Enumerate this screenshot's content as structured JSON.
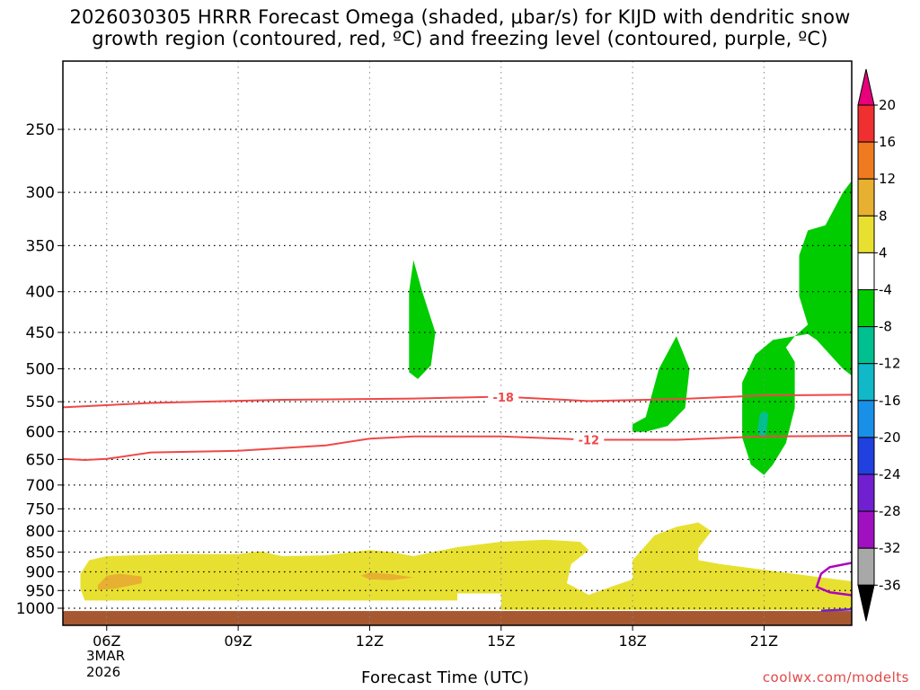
{
  "title_line1": "2026030305 HRRR Forecast Omega (shaded, μbar/s) for KIJD with dendritic snow",
  "title_line2": "growth region (contoured, red, ºC) and freezing level (contoured, purple, ºC)",
  "credit": "coolwx.com/modelts",
  "chart_data": {
    "type": "time-height contour",
    "xlabel": "Forecast Time (UTC)",
    "x_ticks": [
      "06Z",
      "09Z",
      "12Z",
      "15Z",
      "18Z",
      "21Z"
    ],
    "x_tick_hours": [
      6,
      9,
      12,
      15,
      18,
      21
    ],
    "xlim_hours": [
      5,
      23
    ],
    "date_label": [
      "3MAR",
      "2026"
    ],
    "y_axis": "pressure (hPa), log scale, inverted",
    "y_ticks": [
      250,
      300,
      350,
      400,
      450,
      500,
      550,
      600,
      650,
      700,
      750,
      800,
      850,
      900,
      950,
      1000
    ],
    "ylim": [
      200,
      1030
    ],
    "grid": true,
    "colorbar": {
      "labels": [
        "20",
        "16",
        "12",
        "8",
        "4",
        "-4",
        "-8",
        "-12",
        "-16",
        "-20",
        "-24",
        "-28",
        "-32",
        "-36"
      ],
      "colors": [
        "#e8007a",
        "#f03030",
        "#f07a20",
        "#e8b030",
        "#e8e030",
        "#ffffff",
        "#00cc00",
        "#00c090",
        "#10b8c8",
        "#1890e8",
        "#2040e0",
        "#7020d0",
        "#a010c0",
        "#a8a8a8",
        "#000000"
      ]
    },
    "contours": [
      {
        "label": "-18",
        "color": "#f04848",
        "points": [
          [
            5,
            559
          ],
          [
            7,
            552
          ],
          [
            10,
            547
          ],
          [
            13,
            545
          ],
          [
            15,
            542
          ],
          [
            17,
            549
          ],
          [
            19,
            546
          ],
          [
            21,
            540
          ],
          [
            23,
            539
          ]
        ]
      },
      {
        "label": "-12",
        "color": "#f04848",
        "points": [
          [
            5,
            649
          ],
          [
            5.5,
            651
          ],
          [
            6,
            649
          ],
          [
            7,
            637
          ],
          [
            9,
            634
          ],
          [
            11,
            624
          ],
          [
            12,
            612
          ],
          [
            13,
            608
          ],
          [
            15,
            608
          ],
          [
            17,
            614
          ],
          [
            19,
            614
          ],
          [
            21,
            608
          ],
          [
            23,
            607
          ]
        ]
      }
    ],
    "freezing_level": {
      "color": "#b000c0",
      "points": [
        [
          23,
          877
        ],
        [
          22.5,
          888
        ],
        [
          22.3,
          905
        ],
        [
          22.2,
          940
        ],
        [
          22.5,
          955
        ],
        [
          23,
          963
        ]
      ]
    },
    "shaded_regions": [
      {
        "omega": 4,
        "color": "#e8e030",
        "points": [
          [
            5.4,
            905
          ],
          [
            5.6,
            870
          ],
          [
            6,
            860
          ],
          [
            7.5,
            855
          ],
          [
            9,
            855
          ],
          [
            9.5,
            848
          ],
          [
            10,
            860
          ],
          [
            11,
            858
          ],
          [
            12,
            845
          ],
          [
            12.5,
            850
          ],
          [
            13,
            860
          ],
          [
            14,
            838
          ],
          [
            15,
            825
          ],
          [
            16,
            820
          ],
          [
            16.8,
            825
          ],
          [
            17,
            845
          ],
          [
            16.6,
            880
          ],
          [
            16.5,
            930
          ],
          [
            17,
            962
          ],
          [
            17.5,
            940
          ],
          [
            18,
            920
          ],
          [
            18,
            870
          ],
          [
            18.5,
            810
          ],
          [
            19,
            790
          ],
          [
            19.5,
            780
          ],
          [
            19.8,
            800
          ],
          [
            19.5,
            840
          ],
          [
            19.5,
            870
          ],
          [
            20,
            880
          ],
          [
            21,
            895
          ],
          [
            22,
            910
          ],
          [
            23,
            925
          ],
          [
            23,
            1005
          ],
          [
            15,
            1005
          ],
          [
            15,
            958
          ],
          [
            14,
            958
          ],
          [
            14,
            978
          ],
          [
            5.5,
            978
          ],
          [
            5.4,
            945
          ]
        ]
      },
      {
        "omega": 8,
        "color": "#e8b030",
        "points": [
          [
            5.8,
            935
          ],
          [
            6,
            910
          ],
          [
            6.3,
            905
          ],
          [
            6.8,
            912
          ],
          [
            6.8,
            930
          ],
          [
            6.2,
            945
          ],
          [
            5.8,
            948
          ]
        ]
      },
      {
        "omega": 8,
        "color": "#e8b030",
        "points": [
          [
            11.8,
            910
          ],
          [
            12,
            902
          ],
          [
            12.5,
            906
          ],
          [
            13,
            915
          ],
          [
            12.5,
            922
          ],
          [
            12,
            920
          ]
        ]
      },
      {
        "omega": -4,
        "color": "#00cc00",
        "points": [
          [
            12.9,
            505
          ],
          [
            12.9,
            400
          ],
          [
            13,
            365
          ],
          [
            13.2,
            400
          ],
          [
            13.5,
            450
          ],
          [
            13.4,
            495
          ],
          [
            13.1,
            515
          ]
        ]
      },
      {
        "omega": -4,
        "color": "#00cc00",
        "points": [
          [
            18,
            600
          ],
          [
            18,
            587
          ],
          [
            18.3,
            575
          ],
          [
            18.6,
            500
          ],
          [
            19,
            455
          ],
          [
            19.3,
            500
          ],
          [
            19.2,
            560
          ],
          [
            18.8,
            590
          ],
          [
            18.3,
            600
          ]
        ]
      },
      {
        "omega": -4,
        "color": "#00cc00",
        "points": [
          [
            20.5,
            610
          ],
          [
            20.5,
            520
          ],
          [
            20.8,
            480
          ],
          [
            21.2,
            460
          ],
          [
            22,
            452
          ],
          [
            22.2,
            460
          ],
          [
            22.8,
            500
          ],
          [
            23,
            510
          ],
          [
            23,
            290
          ],
          [
            22.8,
            300
          ],
          [
            22.4,
            330
          ],
          [
            22,
            335
          ],
          [
            21.8,
            360
          ],
          [
            21.8,
            405
          ],
          [
            22,
            440
          ],
          [
            21.7,
            455
          ],
          [
            21.5,
            470
          ],
          [
            21.7,
            490
          ],
          [
            21.7,
            560
          ],
          [
            21.5,
            620
          ],
          [
            21.2,
            660
          ],
          [
            21,
            680
          ],
          [
            20.7,
            660
          ]
        ]
      },
      {
        "omega": -8,
        "color": "#00c090",
        "points": [
          [
            20.85,
            600
          ],
          [
            20.9,
            570
          ],
          [
            21,
            565
          ],
          [
            21.1,
            570
          ],
          [
            21.05,
            605
          ],
          [
            20.95,
            610
          ]
        ]
      }
    ],
    "surface_band": {
      "color": "#a85830",
      "pressure_top": 1008
    }
  }
}
